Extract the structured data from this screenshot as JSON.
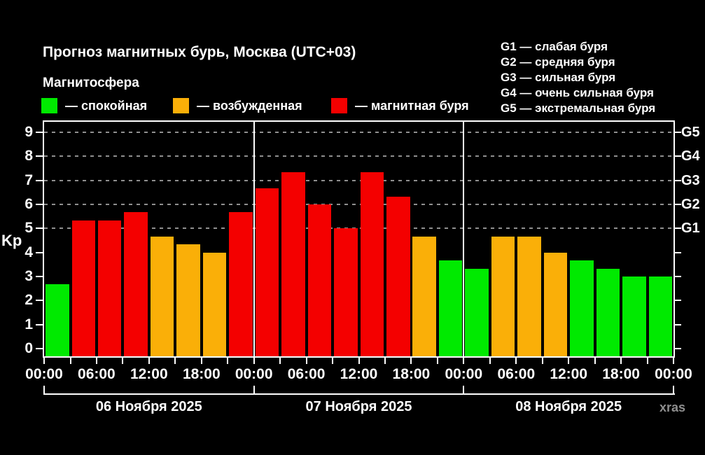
{
  "header": {
    "title": "Прогноз магнитных бурь, Москва (UTC+03)",
    "subtitle": "Магнитосфера",
    "legend": [
      {
        "name": "quiet",
        "label": "— спокойная",
        "color": "#00EA00"
      },
      {
        "name": "excited",
        "label": "— возбужденная",
        "color": "#FAAF08"
      },
      {
        "name": "storm",
        "label": "— магнитная буря",
        "color": "#F40000"
      }
    ],
    "g_scale_legend": [
      "G1 — слабая буря",
      "G2 — средняя буря",
      "G3 — сильная буря",
      "G4 — очень сильная буря",
      "G5 — экстремальная буря"
    ]
  },
  "footer": {
    "watermark": "xras"
  },
  "chart_data": {
    "type": "bar",
    "title": "Прогноз магнитных бурь, Москва (UTC+03)",
    "ylabel": "Kp",
    "ylim": [
      0,
      9
    ],
    "yticks": [
      0,
      1,
      2,
      3,
      4,
      5,
      6,
      7,
      8,
      9
    ],
    "grid": "dashed horizontal lines only at Kp 5–9 (storm levels)",
    "grid_levels": [
      {
        "kp": 5,
        "label": "G1"
      },
      {
        "kp": 6,
        "label": "G2"
      },
      {
        "kp": 7,
        "label": "G3"
      },
      {
        "kp": 8,
        "label": "G4"
      },
      {
        "kp": 9,
        "label": "G5"
      }
    ],
    "bar_interval_hours": 3,
    "time_tick_labels": [
      "00:00",
      "06:00",
      "12:00",
      "18:00",
      "00:00",
      "06:00",
      "12:00",
      "18:00",
      "00:00",
      "06:00",
      "12:00",
      "18:00",
      "00:00"
    ],
    "days": [
      {
        "date_label": "06 Ноября 2025",
        "values": [
          2.67,
          5.33,
          5.33,
          5.67,
          4.67,
          4.33,
          4.0,
          5.67
        ]
      },
      {
        "date_label": "07 Ноября 2025",
        "values": [
          6.67,
          7.33,
          6.0,
          5.0,
          7.33,
          6.33,
          4.67,
          3.67
        ]
      },
      {
        "date_label": "08 Ноября 2025",
        "values": [
          3.33,
          4.67,
          4.67,
          4.0,
          3.67,
          3.33,
          3.0,
          3.0
        ]
      }
    ],
    "color_rule": {
      "storm_min_kp": 5,
      "excited_min_kp": 4
    },
    "colors": {
      "quiet": "#00EA00",
      "excited": "#FAAF08",
      "storm": "#F40000"
    }
  }
}
